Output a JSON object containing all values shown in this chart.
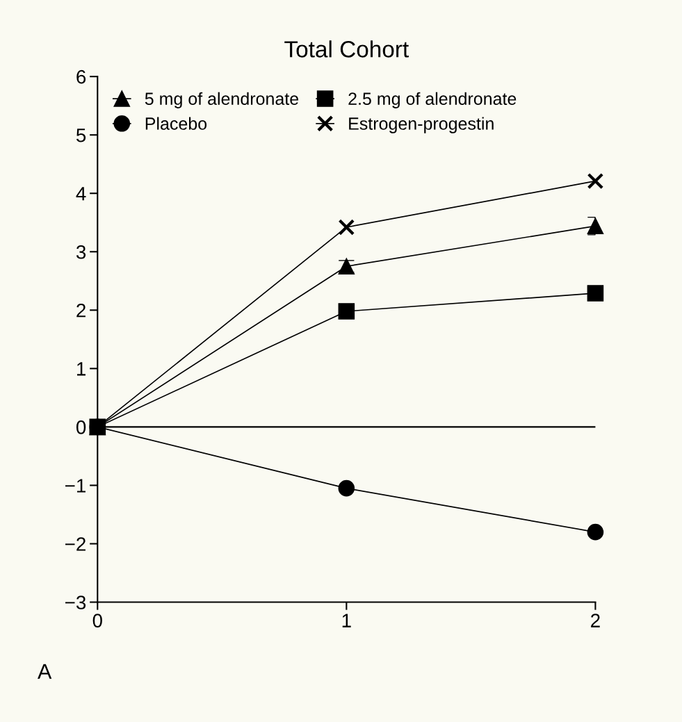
{
  "chart_data": {
    "type": "line",
    "title": "Total Cohort",
    "x": [
      0,
      1,
      2
    ],
    "xlim": [
      0,
      2
    ],
    "xticks": [
      0,
      1,
      2
    ],
    "ylim": [
      -3,
      6
    ],
    "yticks": [
      -3,
      -2,
      -1,
      0,
      1,
      2,
      3,
      4,
      5,
      6
    ],
    "grid": false,
    "legend": "top left",
    "line_style": "solid",
    "series": [
      {
        "name": "5 mg of alendronate",
        "color": "#000000",
        "marker": "triangle",
        "values": [
          0,
          2.75,
          3.44
        ],
        "errors": [
          null,
          0.1,
          0.15
        ]
      },
      {
        "name": "Placebo",
        "color": "#000000",
        "marker": "circle",
        "values": [
          0,
          -1.05,
          -1.8
        ]
      },
      {
        "name": "2.5 mg of alendronate",
        "color": "#000000",
        "marker": "square",
        "values": [
          0,
          1.98,
          2.29
        ]
      },
      {
        "name": "Estrogen-progestin",
        "color": "#000000",
        "marker": "cross",
        "values": [
          0,
          3.42,
          4.21
        ]
      }
    ],
    "ref_lines": [
      {
        "axis": "y",
        "value": 0,
        "color": "#000000",
        "line_style": "solid"
      }
    ],
    "annotations": [
      "A"
    ]
  }
}
